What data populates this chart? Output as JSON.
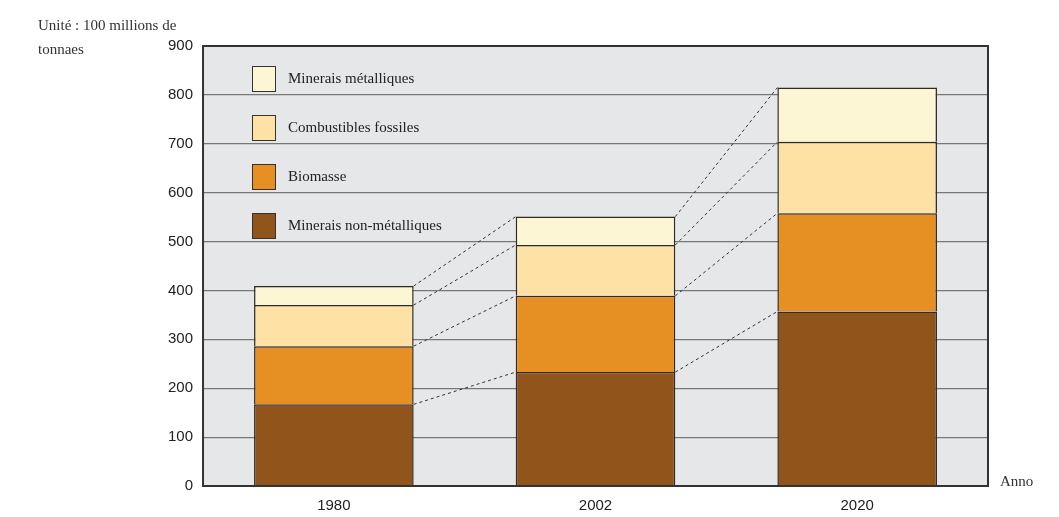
{
  "chart_data": {
    "type": "bar",
    "stacked": true,
    "ylabel": "Unité : 100 millions de tonnaes",
    "xlabel": "Anno",
    "categories": [
      "1980",
      "2002",
      "2020"
    ],
    "series": [
      {
        "name": "Minerais non-métalliques",
        "color": "#91541a",
        "values": [
          167,
          233,
          357
        ]
      },
      {
        "name": "Biomasse",
        "color": "#e69023",
        "values": [
          119,
          156,
          201
        ]
      },
      {
        "name": "Combustibles fossiles",
        "color": "#fde1a5",
        "values": [
          84,
          104,
          146
        ]
      },
      {
        "name": "Minerais métalliques",
        "color": "#fdf6d4",
        "values": [
          39,
          58,
          111
        ]
      }
    ],
    "ylim": [
      0,
      900
    ],
    "yticks": [
      0,
      100,
      200,
      300,
      400,
      500,
      600,
      700,
      800,
      900
    ],
    "grid": "y",
    "legend": "top left"
  }
}
